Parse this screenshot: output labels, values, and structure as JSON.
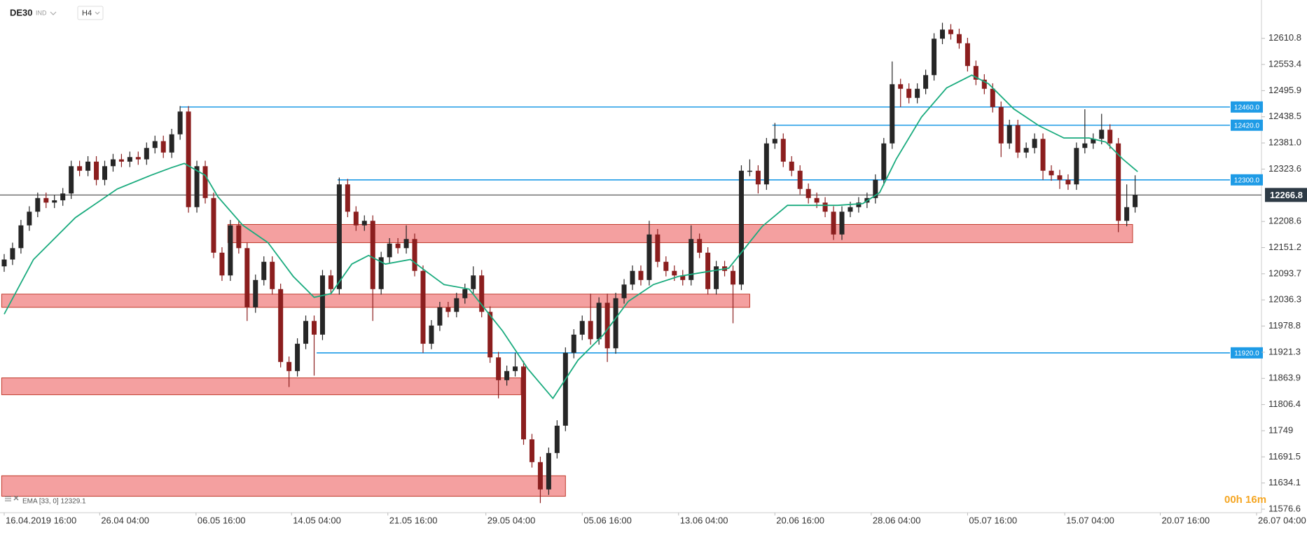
{
  "chart_data": {
    "type": "candlestick",
    "symbol": "DE30",
    "market": "IND",
    "timeframe": "H4",
    "up_color": "#262626",
    "down_color": "#8b1e1e",
    "open": [
      12110,
      12125,
      12150,
      12200,
      12230,
      12260,
      12250,
      12255,
      12270,
      12330,
      12320,
      12340,
      12300,
      12330,
      12345,
      12340,
      12350,
      12345,
      12370,
      12385,
      12360,
      12400,
      12450,
      12240,
      12330,
      12260,
      12140,
      12090,
      12200,
      12150,
      12020,
      12080,
      12120,
      12060,
      11900,
      11880,
      11940,
      11990,
      11960,
      12090,
      12060,
      12290,
      12230,
      12200,
      12210,
      12060,
      12130,
      12160,
      12150,
      12170,
      12100,
      11940,
      11980,
      12020,
      12010,
      12040,
      12060,
      12090,
      12010,
      11910,
      11860,
      11880,
      11890,
      11730,
      11680,
      11620,
      11700,
      11760,
      11920,
      11960,
      11990,
      11950,
      12030,
      11930,
      12040,
      12070,
      12100,
      12080,
      12180,
      12120,
      12100,
      12090,
      12080,
      12170,
      12140,
      12060,
      12110,
      12100,
      12070,
      12320,
      12320,
      12290,
      12380,
      12390,
      12340,
      12320,
      12280,
      12260,
      12250,
      12230,
      12180,
      12230,
      12240,
      12250,
      12260,
      12300,
      12380,
      12510,
      12500,
      12480,
      12500,
      12530,
      12610,
      12630,
      12620,
      12600,
      12550,
      12520,
      12500,
      12460,
      12380,
      12420,
      12360,
      12370,
      12390,
      12320,
      12310,
      12300,
      12290,
      12370,
      12380,
      12390,
      12410,
      12380,
      12210,
      12240
    ],
    "high": [
      12137,
      12162,
      12212,
      12242,
      12272,
      12272,
      12267,
      12282,
      12342,
      12342,
      12352,
      12352,
      12342,
      12357,
      12357,
      12362,
      12362,
      12382,
      12397,
      12397,
      12412,
      12462,
      12462,
      12342,
      12342,
      12272,
      12152,
      12212,
      12212,
      12162,
      12092,
      12132,
      12132,
      12072,
      11912,
      11952,
      12002,
      12002,
      12102,
      12102,
      12305,
      12302,
      12242,
      12222,
      12222,
      12142,
      12172,
      12172,
      12200,
      12182,
      12112,
      11992,
      12032,
      12032,
      12052,
      12072,
      12110,
      12102,
      12022,
      11922,
      11892,
      11920,
      11902,
      11742,
      11692,
      11712,
      11772,
      11932,
      11972,
      12002,
      12050,
      12042,
      12050,
      12052,
      12082,
      12112,
      12112,
      12210,
      12192,
      12132,
      12112,
      12102,
      12200,
      12182,
      12152,
      12122,
      12122,
      12112,
      12332,
      12345,
      12332,
      12392,
      12425,
      12402,
      12352,
      12332,
      12292,
      12272,
      12262,
      12242,
      12242,
      12252,
      12262,
      12272,
      12312,
      12392,
      12560,
      12522,
      12512,
      12512,
      12542,
      12622,
      12645,
      12642,
      12632,
      12612,
      12562,
      12532,
      12512,
      12472,
      12432,
      12432,
      12382,
      12402,
      12402,
      12332,
      12322,
      12312,
      12382,
      12455,
      12402,
      12445,
      12422,
      12392,
      12290,
      12310
    ],
    "low": [
      12098,
      12113,
      12138,
      12188,
      12218,
      12238,
      12238,
      12243,
      12258,
      12308,
      12308,
      12288,
      12288,
      12318,
      12328,
      12328,
      12333,
      12333,
      12358,
      12348,
      12348,
      12388,
      12228,
      12228,
      12248,
      12128,
      12078,
      12078,
      12138,
      11990,
      12008,
      12068,
      12048,
      11888,
      11845,
      11868,
      11928,
      11870,
      11948,
      12048,
      12048,
      12218,
      12188,
      12188,
      11990,
      12048,
      12118,
      12138,
      12138,
      12088,
      11920,
      11928,
      11968,
      11998,
      11998,
      12028,
      12048,
      11998,
      11898,
      11820,
      11848,
      11868,
      11718,
      11668,
      11590,
      11608,
      11688,
      11748,
      11908,
      11948,
      11938,
      11938,
      11900,
      11918,
      12028,
      12058,
      12068,
      12068,
      12108,
      12088,
      12078,
      12068,
      12068,
      12128,
      12048,
      12048,
      12088,
      11985,
      12058,
      12308,
      12270,
      12278,
      12368,
      12328,
      12308,
      12268,
      12248,
      12238,
      12218,
      12168,
      12168,
      12218,
      12228,
      12238,
      12248,
      12288,
      12368,
      12460,
      12468,
      12468,
      12488,
      12518,
      12598,
      12608,
      12588,
      12538,
      12508,
      12488,
      12448,
      12350,
      12368,
      12348,
      12348,
      12358,
      12300,
      12298,
      12280,
      12278,
      12278,
      12358,
      12368,
      12378,
      12368,
      12185,
      12198,
      12228
    ],
    "close": [
      12125,
      12150,
      12200,
      12230,
      12260,
      12250,
      12255,
      12270,
      12330,
      12320,
      12340,
      12300,
      12330,
      12345,
      12340,
      12350,
      12345,
      12370,
      12385,
      12360,
      12400,
      12450,
      12240,
      12330,
      12260,
      12140,
      12090,
      12200,
      12150,
      12020,
      12080,
      12120,
      12060,
      11900,
      11880,
      11940,
      11990,
      11960,
      12090,
      12060,
      12290,
      12230,
      12200,
      12210,
      12060,
      12130,
      12160,
      12150,
      12170,
      12100,
      11940,
      11980,
      12020,
      12010,
      12040,
      12060,
      12090,
      12010,
      11910,
      11860,
      11880,
      11890,
      11730,
      11680,
      11620,
      11700,
      11760,
      11920,
      11960,
      11990,
      11950,
      12030,
      11930,
      12040,
      12070,
      12100,
      12080,
      12180,
      12120,
      12100,
      12090,
      12080,
      12170,
      12140,
      12060,
      12110,
      12100,
      12070,
      12320,
      12320,
      12290,
      12380,
      12390,
      12340,
      12320,
      12280,
      12260,
      12250,
      12230,
      12180,
      12230,
      12240,
      12250,
      12260,
      12300,
      12380,
      12510,
      12500,
      12480,
      12500,
      12530,
      12610,
      12630,
      12620,
      12600,
      12550,
      12520,
      12500,
      12460,
      12380,
      12420,
      12360,
      12370,
      12390,
      12320,
      12310,
      12300,
      12290,
      12370,
      12380,
      12390,
      12410,
      12380,
      12210,
      12240,
      12266.8
    ],
    "ema": {
      "label": "EMA [33, 0] 12329.1",
      "color": "#1aab7e",
      "x": [
        0,
        3.5,
        8.5,
        13.5,
        17.5,
        20,
        21.5,
        24,
        25.5,
        28.5,
        31.5,
        34.5,
        37,
        39,
        41.5,
        43.5,
        45.5,
        48.5,
        50.5,
        52.5,
        55.5,
        57.5,
        59.5,
        62.5,
        65.5,
        68.5,
        71.5,
        74.5,
        77.5,
        80.5,
        83.5,
        86.5,
        88.5,
        90.5,
        93.5,
        96.5,
        99.5,
        102.5,
        104.5,
        106.5,
        109.5,
        112.5,
        115.5,
        117.5,
        120.5,
        123.5,
        126.5,
        129.5,
        131.5,
        133.5,
        135.3
      ],
      "values": [
        12005,
        12125,
        12217,
        12280,
        12310,
        12327,
        12336,
        12310,
        12263,
        12200,
        12162,
        12088,
        12042,
        12050,
        12115,
        12134,
        12115,
        12125,
        12097,
        12070,
        12060,
        12014,
        11968,
        11885,
        11820,
        11904,
        11959,
        12033,
        12070,
        12088,
        12097,
        12106,
        12152,
        12198,
        12244,
        12244,
        12244,
        12248,
        12272,
        12346,
        12438,
        12502,
        12530,
        12511,
        12456,
        12419,
        12392,
        12392,
        12383,
        12346,
        12318
      ]
    },
    "level_color": "#1e9be6",
    "levels": [
      {
        "value": 12460,
        "label": "12460.0",
        "start": 21
      },
      {
        "value": 12420,
        "label": "12420.0",
        "start": 91.7
      },
      {
        "value": 12300,
        "label": "12300.0",
        "start": 39.8
      },
      {
        "value": 11920,
        "label": "11920.0",
        "start": 37.3
      }
    ],
    "zone_color": "#f08080",
    "zones": [
      {
        "low": 12162,
        "high": 12202,
        "start": 26.7,
        "end": 134.7
      },
      {
        "low": 12020,
        "high": 12049,
        "start": -0.3,
        "end": 89
      },
      {
        "low": 11828,
        "high": 11865,
        "start": -0.3,
        "end": 61.7
      },
      {
        "low": 11605,
        "high": 11650,
        "start": -0.3,
        "end": 67
      }
    ],
    "last": 12266.8,
    "timer": "00h 16m",
    "xlim": [
      -0.5,
      150
    ],
    "xticks": [
      {
        "value": 0,
        "label": "16.04.2019 16:00"
      },
      {
        "value": 11.4,
        "label": "26.04 04:00"
      },
      {
        "value": 22.9,
        "label": "06.05 16:00"
      },
      {
        "value": 34.3,
        "label": "14.05 04:00"
      },
      {
        "value": 45.8,
        "label": "21.05 16:00"
      },
      {
        "value": 57.5,
        "label": "29.05 04:00"
      },
      {
        "value": 69,
        "label": "05.06 16:00"
      },
      {
        "value": 80.5,
        "label": "13.06 04:00"
      },
      {
        "value": 92,
        "label": "20.06 16:00"
      },
      {
        "value": 103.5,
        "label": "28.06 04:00"
      },
      {
        "value": 115,
        "label": "05.07 16:00"
      },
      {
        "value": 126.6,
        "label": "15.07 04:00"
      },
      {
        "value": 138,
        "label": "20.07 16:00"
      },
      {
        "value": 149.5,
        "label": "26.07 04:00"
      }
    ],
    "ylim": [
      11572,
      12695
    ],
    "yticks": [
      12610.8,
      12553.4,
      12495.9,
      12438.5,
      {
        "value": 12381,
        "label": "12381.0"
      },
      12323.6,
      12208.6,
      12151.2,
      12093.7,
      12036.3,
      11978.8,
      11921.3,
      11863.9,
      11806.4,
      11749.0,
      11691.5,
      11634.1,
      11576.6
    ]
  }
}
